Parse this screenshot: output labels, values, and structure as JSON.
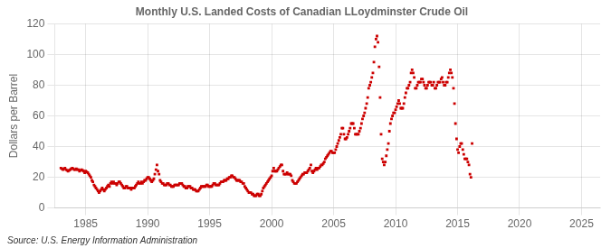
{
  "chart_data": {
    "type": "scatter",
    "title": "Monthly U.S. Landed Costs of Canadian LLoydminster Crude Oil",
    "ylabel": "Dollars per Barrel",
    "annotations": [
      "Source: U.S. Energy Information Administration"
    ],
    "color": "#CC0000",
    "marker": "square",
    "grid": true,
    "xlim": [
      1982.5,
      2026.5
    ],
    "ylim": [
      0,
      120
    ],
    "xticks": [
      1985,
      1990,
      1995,
      2000,
      2005,
      2010,
      2015,
      2020,
      2025
    ],
    "yticks": [
      0,
      20,
      40,
      60,
      80,
      100,
      120
    ],
    "x": [
      1983.0,
      1983.08,
      1983.17,
      1983.25,
      1983.33,
      1983.42,
      1983.5,
      1983.58,
      1983.67,
      1983.75,
      1983.83,
      1983.92,
      1984.0,
      1984.08,
      1984.17,
      1984.25,
      1984.33,
      1984.42,
      1984.5,
      1984.58,
      1984.67,
      1984.75,
      1984.83,
      1984.92,
      1985.0,
      1985.08,
      1985.17,
      1985.25,
      1985.33,
      1985.42,
      1985.5,
      1985.58,
      1985.67,
      1985.75,
      1985.83,
      1985.92,
      1986.0,
      1986.08,
      1986.17,
      1986.25,
      1986.33,
      1986.42,
      1986.5,
      1986.58,
      1986.67,
      1986.75,
      1986.83,
      1986.92,
      1987.0,
      1987.08,
      1987.17,
      1987.25,
      1987.33,
      1987.42,
      1987.5,
      1987.58,
      1987.67,
      1987.75,
      1987.83,
      1987.92,
      1988.0,
      1988.08,
      1988.17,
      1988.25,
      1988.33,
      1988.42,
      1988.5,
      1988.58,
      1988.67,
      1988.75,
      1988.83,
      1988.92,
      1989.0,
      1989.08,
      1989.17,
      1989.25,
      1989.33,
      1989.42,
      1989.5,
      1989.58,
      1989.67,
      1989.75,
      1989.83,
      1989.92,
      1990.0,
      1990.08,
      1990.17,
      1990.25,
      1990.33,
      1990.42,
      1990.5,
      1990.58,
      1990.67,
      1990.75,
      1990.83,
      1990.92,
      1991.0,
      1991.08,
      1991.17,
      1991.25,
      1991.33,
      1991.42,
      1991.5,
      1991.58,
      1991.67,
      1991.75,
      1991.83,
      1991.92,
      1992.0,
      1992.08,
      1992.17,
      1992.25,
      1992.33,
      1992.42,
      1992.5,
      1992.58,
      1992.67,
      1992.75,
      1992.83,
      1992.92,
      1993.0,
      1993.08,
      1993.17,
      1993.25,
      1993.33,
      1993.42,
      1993.5,
      1993.58,
      1993.67,
      1993.75,
      1993.83,
      1993.92,
      1994.0,
      1994.08,
      1994.17,
      1994.25,
      1994.33,
      1994.42,
      1994.5,
      1994.58,
      1994.67,
      1994.75,
      1994.83,
      1994.92,
      1995.0,
      1995.08,
      1995.17,
      1995.25,
      1995.33,
      1995.42,
      1995.5,
      1995.58,
      1995.67,
      1995.75,
      1995.83,
      1995.92,
      1996.0,
      1996.08,
      1996.17,
      1996.25,
      1996.33,
      1996.42,
      1996.5,
      1996.58,
      1996.67,
      1996.75,
      1996.83,
      1996.92,
      1997.0,
      1997.08,
      1997.17,
      1997.25,
      1997.33,
      1997.42,
      1997.5,
      1997.58,
      1997.67,
      1997.75,
      1997.83,
      1997.92,
      1998.0,
      1998.08,
      1998.17,
      1998.25,
      1998.33,
      1998.42,
      1998.5,
      1998.58,
      1998.67,
      1998.75,
      1998.83,
      1998.92,
      1999.0,
      1999.08,
      1999.17,
      1999.25,
      1999.33,
      1999.42,
      1999.5,
      1999.58,
      1999.67,
      1999.75,
      1999.83,
      1999.92,
      2000.0,
      2000.08,
      2000.17,
      2000.25,
      2000.33,
      2000.42,
      2000.5,
      2000.58,
      2000.67,
      2000.75,
      2000.83,
      2000.92,
      2001.0,
      2001.08,
      2001.17,
      2001.25,
      2001.33,
      2001.42,
      2001.5,
      2001.58,
      2001.67,
      2001.75,
      2001.83,
      2001.92,
      2002.0,
      2002.08,
      2002.17,
      2002.25,
      2002.33,
      2002.42,
      2002.5,
      2002.58,
      2002.67,
      2002.75,
      2002.83,
      2002.92,
      2003.0,
      2003.08,
      2003.17,
      2003.25,
      2003.33,
      2003.42,
      2003.5,
      2003.58,
      2003.67,
      2003.75,
      2003.83,
      2003.92,
      2004.0,
      2004.08,
      2004.17,
      2004.25,
      2004.33,
      2004.42,
      2004.5,
      2004.58,
      2004.67,
      2004.75,
      2004.83,
      2004.92,
      2005.0,
      2005.08,
      2005.17,
      2005.25,
      2005.33,
      2005.42,
      2005.5,
      2005.58,
      2005.67,
      2005.75,
      2005.83,
      2005.92,
      2006.0,
      2006.08,
      2006.17,
      2006.25,
      2006.33,
      2006.42,
      2006.5,
      2006.58,
      2006.67,
      2006.75,
      2006.83,
      2006.92,
      2007.0,
      2007.08,
      2007.17,
      2007.25,
      2007.33,
      2007.42,
      2007.5,
      2007.58,
      2007.67,
      2007.75,
      2007.83,
      2007.92,
      2008.0,
      2008.08,
      2008.17,
      2008.25,
      2008.33,
      2008.42,
      2008.5,
      2008.58,
      2008.67,
      2008.75,
      2008.83,
      2008.92,
      2009.0,
      2009.08,
      2009.17,
      2009.25,
      2009.33,
      2009.42,
      2009.5,
      2009.58,
      2009.67,
      2009.75,
      2009.83,
      2009.92,
      2010.0,
      2010.08,
      2010.17,
      2010.25,
      2010.33,
      2010.42,
      2010.5,
      2010.58,
      2010.67,
      2010.75,
      2010.83,
      2010.92,
      2011.0,
      2011.08,
      2011.17,
      2011.25,
      2011.33,
      2011.42,
      2011.5,
      2011.58,
      2011.67,
      2011.75,
      2011.83,
      2011.92,
      2012.0,
      2012.08,
      2012.17,
      2012.25,
      2012.33,
      2012.42,
      2012.5,
      2012.58,
      2012.67,
      2012.75,
      2012.83,
      2012.92,
      2013.0,
      2013.08,
      2013.17,
      2013.25,
      2013.33,
      2013.42,
      2013.5,
      2013.58,
      2013.67,
      2013.75,
      2013.83,
      2013.92,
      2014.0,
      2014.08,
      2014.17,
      2014.25,
      2014.33,
      2014.42,
      2014.5,
      2014.58,
      2014.67,
      2014.75,
      2014.83,
      2014.92,
      2015.0,
      2015.08,
      2015.17,
      2015.25,
      2015.33,
      2015.42,
      2015.5,
      2015.58,
      2015.67,
      2015.75,
      2015.83,
      2015.92,
      2016.0,
      2016.08,
      2016.17
    ],
    "values": [
      26,
      25.5,
      25,
      25.5,
      26,
      25,
      24.5,
      24,
      24.5,
      25,
      25.5,
      26,
      25.5,
      25,
      25,
      25.5,
      25,
      25,
      24,
      24.5,
      25,
      24.5,
      24,
      23,
      24,
      23.5,
      23,
      22,
      21,
      20,
      18,
      17,
      15,
      14,
      13,
      12,
      11,
      10,
      11,
      12,
      13,
      12,
      11,
      12,
      13,
      14,
      15,
      14,
      16,
      17,
      16,
      17,
      16,
      16,
      15,
      16,
      17,
      17,
      16,
      15,
      14,
      13,
      13,
      14,
      14,
      13,
      13,
      13,
      12,
      13,
      13,
      13,
      14,
      15,
      16,
      17,
      16,
      16,
      17,
      16,
      17,
      18,
      18,
      19,
      20,
      20,
      19,
      18,
      17,
      18,
      19,
      22,
      25,
      28,
      24,
      22,
      18,
      17,
      16,
      16,
      15,
      15,
      15,
      16,
      16,
      15,
      15,
      14,
      14,
      14,
      15,
      15,
      15,
      15,
      15,
      16,
      16,
      16,
      15,
      14,
      14,
      13,
      13,
      14,
      14,
      14,
      13,
      13,
      12,
      12,
      12,
      11,
      11,
      11,
      12,
      13,
      14,
      14,
      14,
      14,
      14,
      15,
      15,
      14,
      14,
      14,
      14,
      15,
      16,
      16,
      15,
      15,
      15,
      15,
      16,
      17,
      17,
      17,
      18,
      18,
      18,
      19,
      19,
      20,
      20,
      21,
      21,
      20,
      20,
      19,
      18,
      18,
      18,
      18,
      17,
      17,
      16,
      16,
      14,
      13,
      12,
      11,
      10,
      10,
      10,
      9,
      9,
      8,
      8,
      8,
      9,
      9,
      8,
      8,
      9,
      11,
      13,
      14,
      15,
      16,
      17,
      18,
      19,
      20,
      21,
      24,
      26,
      24,
      24,
      24,
      25,
      26,
      27,
      28,
      28,
      24,
      22,
      22,
      22,
      23,
      22,
      22,
      22,
      21,
      18,
      17,
      16,
      16,
      16,
      17,
      18,
      19,
      20,
      21,
      22,
      22,
      23,
      23,
      23,
      24,
      25,
      26,
      28,
      24,
      23,
      24,
      25,
      26,
      25,
      26,
      26,
      27,
      28,
      28,
      29,
      30,
      32,
      33,
      34,
      35,
      36,
      37,
      37,
      36,
      36,
      36,
      38,
      40,
      42,
      44,
      46,
      48,
      52,
      52,
      48,
      45,
      45,
      46,
      48,
      50,
      52,
      55,
      55,
      55,
      52,
      48,
      48,
      48,
      48,
      50,
      52,
      55,
      58,
      60,
      62,
      65,
      68,
      72,
      78,
      80,
      82,
      85,
      88,
      95,
      105,
      110,
      112,
      108,
      92,
      72,
      48,
      32,
      30,
      28,
      30,
      34,
      38,
      42,
      50,
      55,
      58,
      60,
      62,
      62,
      64,
      66,
      68,
      70,
      68,
      65,
      65,
      65,
      68,
      72,
      75,
      78,
      78,
      80,
      82,
      88,
      90,
      88,
      85,
      78,
      78,
      80,
      82,
      82,
      82,
      84,
      84,
      82,
      80,
      78,
      78,
      80,
      82,
      82,
      82,
      80,
      80,
      82,
      78,
      78,
      80,
      82,
      82,
      82,
      84,
      85,
      82,
      80,
      80,
      82,
      82,
      85,
      88,
      90,
      88,
      85,
      78,
      68,
      55,
      45,
      38,
      36,
      40,
      42,
      42,
      38,
      35,
      32,
      32,
      32,
      30,
      28,
      22,
      20,
      42
    ]
  }
}
